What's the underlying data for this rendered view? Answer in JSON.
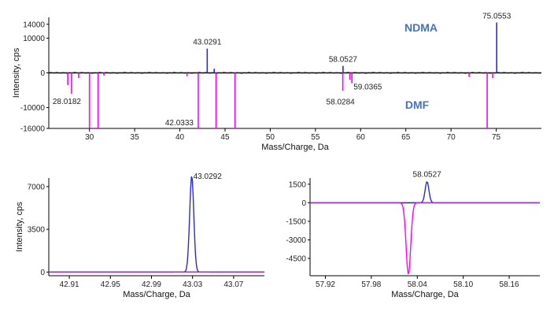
{
  "colors": {
    "ndma": "#2b2bd6",
    "dmf": "#ff00ff",
    "baseline": "#111111",
    "axis": "#000000"
  },
  "chart_data": [
    {
      "type": "line",
      "subtype": "mirror-stick-spectrum",
      "xlabel": "Mass/Charge, Da",
      "ylabel": "Intensity, cps",
      "xlim": [
        25.5,
        80
      ],
      "ylim": [
        -16000,
        16000
      ],
      "xticks": [
        30,
        35,
        40,
        45,
        50,
        55,
        60,
        65,
        70,
        75
      ],
      "yticks": [
        14000,
        10000,
        0,
        -10000,
        -16000
      ],
      "ytick_labels": [
        "14000",
        "10000",
        "0",
        "-10000",
        "-16000"
      ],
      "legend": [
        "NDMA",
        "DMF"
      ],
      "series": [
        {
          "name": "NDMA",
          "color": "#2b2bd6",
          "peaks": [
            {
              "mz": 43.0291,
              "intensity": 7000
            },
            {
              "mz": 43.8,
              "intensity": 1200
            },
            {
              "mz": 58.0527,
              "intensity": 2000
            },
            {
              "mz": 75.0553,
              "intensity": 14500
            }
          ]
        },
        {
          "name": "DMF",
          "color": "#ff00ff",
          "peaks": [
            {
              "mz": 27.6,
              "intensity": -3500
            },
            {
              "mz": 28.0182,
              "intensity": -6000
            },
            {
              "mz": 28.8,
              "intensity": -1500
            },
            {
              "mz": 30.0,
              "intensity": -16000
            },
            {
              "mz": 30.95,
              "intensity": -16000
            },
            {
              "mz": 31.6,
              "intensity": -800
            },
            {
              "mz": 40.8,
              "intensity": -1000
            },
            {
              "mz": 42.0333,
              "intensity": -16000
            },
            {
              "mz": 44.0,
              "intensity": -16000
            },
            {
              "mz": 46.1,
              "intensity": -16000
            },
            {
              "mz": 58.0284,
              "intensity": -5200
            },
            {
              "mz": 58.8,
              "intensity": -2000
            },
            {
              "mz": 59.0365,
              "intensity": -3000
            },
            {
              "mz": 72.0,
              "intensity": -1200
            },
            {
              "mz": 74.0,
              "intensity": -16000
            },
            {
              "mz": 74.6,
              "intensity": -1500
            }
          ]
        }
      ],
      "peak_labels": [
        {
          "text": "43.0291",
          "mz": 43.0291,
          "intensity": 7000,
          "pos": "above"
        },
        {
          "text": "75.0553",
          "mz": 75.0553,
          "intensity": 14500,
          "pos": "above"
        },
        {
          "text": "58.0527",
          "mz": 58.0527,
          "intensity": 2000,
          "pos": "above"
        },
        {
          "text": "28.0182",
          "mz": 28.0182,
          "intensity": -6000,
          "pos": "below"
        },
        {
          "text": "42.0333",
          "mz": 42.0333,
          "intensity": -16000,
          "pos": "left"
        },
        {
          "text": "58.0284",
          "mz": 58.0284,
          "intensity": -5200,
          "pos": "below"
        },
        {
          "text": "59.0365",
          "mz": 59.0365,
          "intensity": -3000,
          "pos": "right"
        }
      ]
    },
    {
      "type": "line",
      "subtype": "zoomed-profile",
      "xlabel": "Mass/Charge, Da",
      "ylabel": "Intensity, cps",
      "xlim": [
        42.89,
        43.1
      ],
      "ylim": [
        -300,
        7700
      ],
      "xticks": [
        42.91,
        42.95,
        42.99,
        43.03,
        43.07
      ],
      "xtick_labels": [
        "42.91",
        "42.95",
        "42.99",
        "43.03",
        "43.07"
      ],
      "yticks": [
        7000,
        3500,
        0
      ],
      "ytick_labels": [
        "7000",
        "3500",
        "0"
      ],
      "series": [
        {
          "name": "NDMA",
          "color": "#2b2bd6",
          "center": 43.0292,
          "height": 7900,
          "width": 0.002
        },
        {
          "name": "DMF",
          "color": "#ff00ff",
          "flat": 0
        }
      ],
      "peak_labels": [
        {
          "text": "43.0292",
          "mz": 43.0292,
          "intensity": 7900,
          "pos": "right"
        }
      ]
    },
    {
      "type": "line",
      "subtype": "zoomed-profile",
      "xlabel": "Mass/Charge, Da",
      "ylabel": "",
      "xlim": [
        57.9,
        58.2
      ],
      "ylim": [
        -5900,
        2000
      ],
      "xticks": [
        57.92,
        57.98,
        58.04,
        58.1,
        58.16
      ],
      "xtick_labels": [
        "57.92",
        "57.98",
        "58.04",
        "58.10",
        "58.16"
      ],
      "yticks": [
        1500,
        0,
        -1500,
        -3000,
        -4500
      ],
      "ytick_labels": [
        "1500",
        "0",
        "-1500",
        "-3000",
        "-4500"
      ],
      "series": [
        {
          "name": "NDMA",
          "color": "#2b2bd6",
          "center": 58.0527,
          "height": 1700,
          "width": 0.0025
        },
        {
          "name": "DMF",
          "color": "#ff00ff",
          "center": 58.0284,
          "height": -5800,
          "width": 0.003
        }
      ],
      "peak_labels": [
        {
          "text": "58.0527",
          "mz": 58.0527,
          "intensity": 1700,
          "pos": "above"
        }
      ]
    }
  ]
}
